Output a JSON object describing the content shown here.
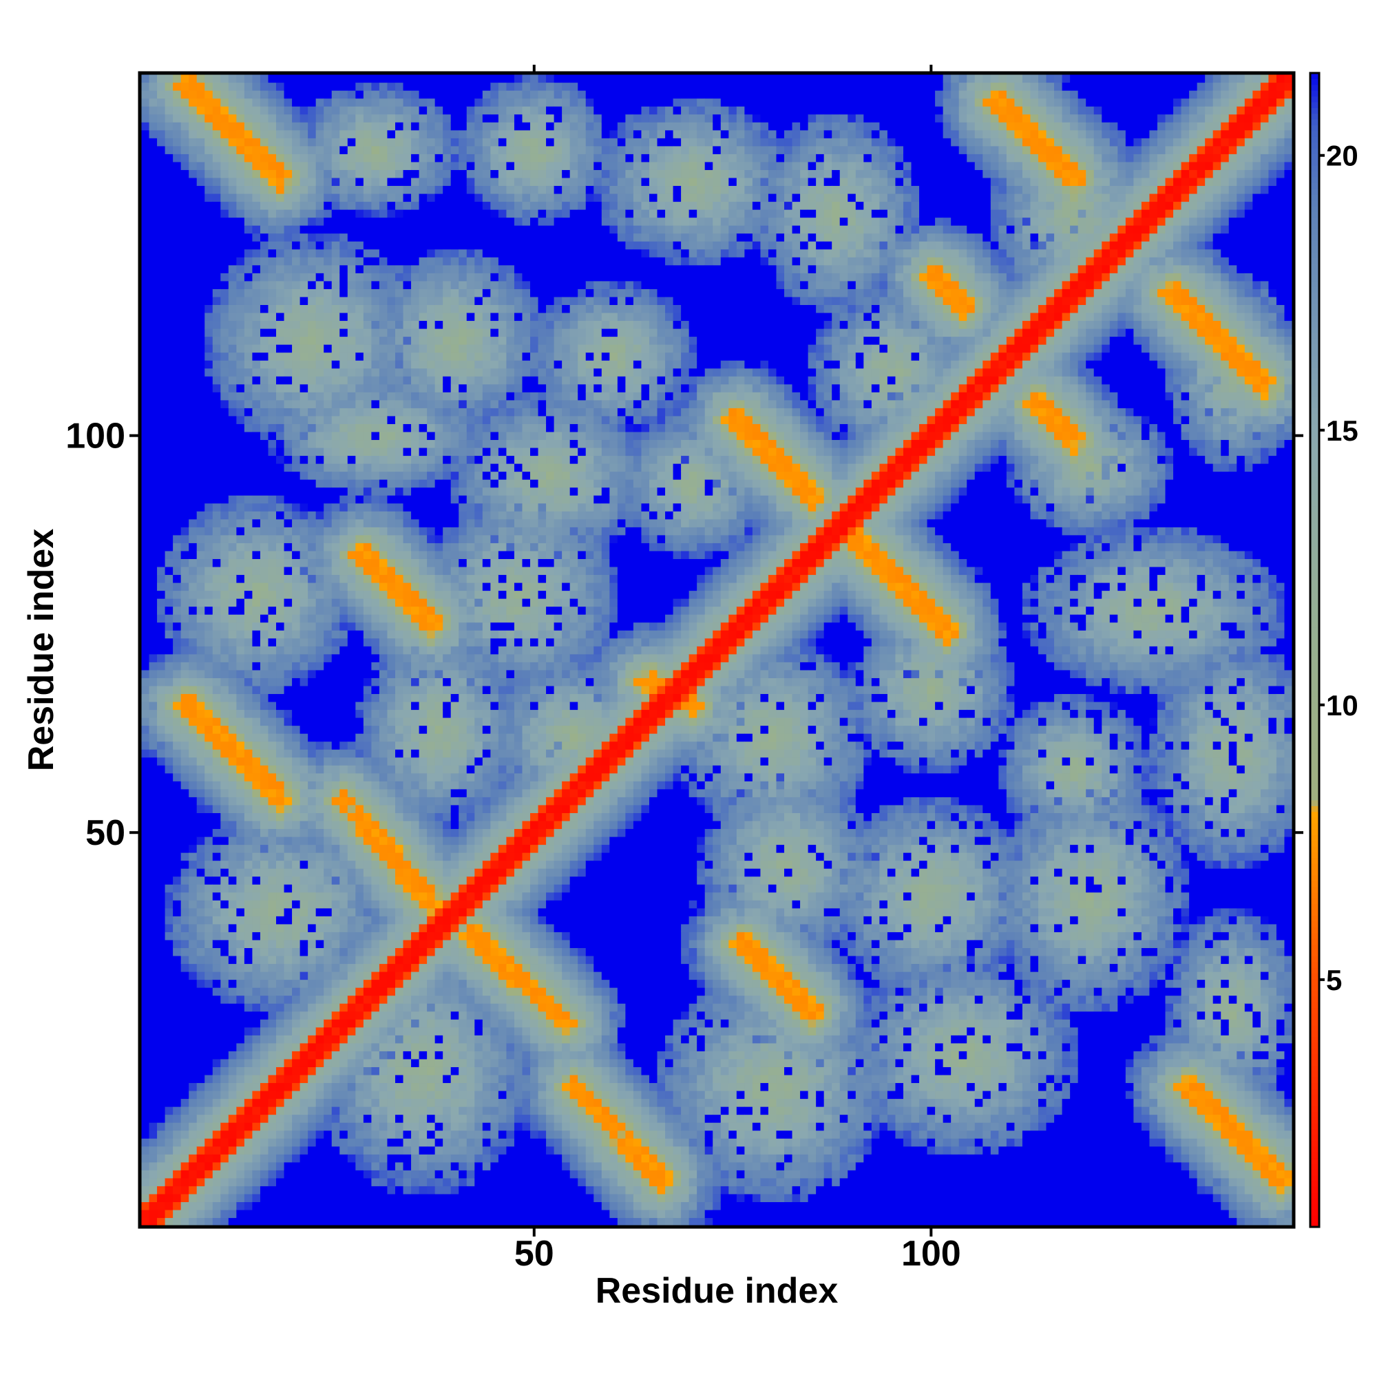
{
  "chart_data": {
    "type": "heatmap",
    "title": "",
    "xlabel": "Residue index",
    "ylabel": "Residue index",
    "xlim": [
      1,
      145
    ],
    "ylim": [
      1,
      145
    ],
    "x_ticks": [
      50,
      100
    ],
    "y_ticks": [
      50,
      100
    ],
    "colorbar": {
      "range": [
        0.5,
        21.5
      ],
      "ticks": [
        5,
        10,
        15,
        20
      ],
      "stops": [
        {
          "value": 0.5,
          "color": "#ff0000"
        },
        {
          "value": 5.0,
          "color": "#ff5000"
        },
        {
          "value": 8.0,
          "color": "#ffa500"
        },
        {
          "value": 8.2,
          "color": "#a0b080"
        },
        {
          "value": 11.0,
          "color": "#98b090"
        },
        {
          "value": 15.0,
          "color": "#8aa8b0"
        },
        {
          "value": 19.0,
          "color": "#5e82b8"
        },
        {
          "value": 20.5,
          "color": "#4060c8"
        },
        {
          "value": 21.5,
          "color": "#0000ee"
        }
      ]
    },
    "background_color": "#0000ee",
    "contact_segments": [
      {
        "i1": 1,
        "j1": 1,
        "i2": 145,
        "j2": 145,
        "value": 1.0
      },
      {
        "i1": 6,
        "j1": 144,
        "i2": 18,
        "j2": 132,
        "value": 7
      },
      {
        "i1": 108,
        "j1": 142,
        "i2": 118,
        "j2": 132,
        "value": 7
      },
      {
        "i1": 130,
        "j1": 118,
        "i2": 142,
        "j2": 106,
        "value": 7
      },
      {
        "i1": 75,
        "j1": 102,
        "i2": 85,
        "j2": 92,
        "value": 7
      },
      {
        "i1": 90,
        "j1": 87,
        "i2": 102,
        "j2": 75,
        "value": 7
      },
      {
        "i1": 28,
        "j1": 85,
        "i2": 37,
        "j2": 76,
        "value": 7
      },
      {
        "i1": 6,
        "j1": 66,
        "i2": 18,
        "j2": 54,
        "value": 7
      },
      {
        "i1": 26,
        "j1": 54,
        "i2": 37,
        "j2": 41,
        "value": 7
      },
      {
        "i1": 42,
        "j1": 37,
        "i2": 54,
        "j2": 26,
        "value": 7
      },
      {
        "i1": 76,
        "j1": 36,
        "i2": 85,
        "j2": 27,
        "value": 7
      },
      {
        "i1": 55,
        "j1": 18,
        "i2": 66,
        "j2": 6,
        "value": 7
      },
      {
        "i1": 132,
        "j1": 18,
        "i2": 144,
        "j2": 6,
        "value": 7
      },
      {
        "i1": 100,
        "j1": 120,
        "i2": 104,
        "j2": 116,
        "value": 7
      },
      {
        "i1": 113,
        "j1": 104,
        "i2": 118,
        "j2": 99,
        "value": 7
      },
      {
        "i1": 64,
        "j1": 69,
        "i2": 70,
        "j2": 66,
        "value": 7
      }
    ],
    "clusters": [
      {
        "x": 22,
        "y": 112,
        "rx": 13,
        "ry": 13
      },
      {
        "x": 40,
        "y": 112,
        "rx": 11,
        "ry": 11
      },
      {
        "x": 60,
        "y": 110,
        "rx": 10,
        "ry": 9
      },
      {
        "x": 70,
        "y": 132,
        "rx": 12,
        "ry": 10
      },
      {
        "x": 50,
        "y": 136,
        "rx": 9,
        "ry": 9
      },
      {
        "x": 30,
        "y": 136,
        "rx": 10,
        "ry": 8
      },
      {
        "x": 88,
        "y": 128,
        "rx": 10,
        "ry": 12
      },
      {
        "x": 95,
        "y": 108,
        "rx": 10,
        "ry": 10
      },
      {
        "x": 30,
        "y": 100,
        "rx": 13,
        "ry": 7
      },
      {
        "x": 52,
        "y": 95,
        "rx": 12,
        "ry": 10
      },
      {
        "x": 70,
        "y": 94,
        "rx": 9,
        "ry": 9
      },
      {
        "x": 15,
        "y": 80,
        "rx": 12,
        "ry": 12
      },
      {
        "x": 48,
        "y": 80,
        "rx": 12,
        "ry": 12
      },
      {
        "x": 38,
        "y": 63,
        "rx": 10,
        "ry": 12
      },
      {
        "x": 55,
        "y": 62,
        "rx": 10,
        "ry": 10
      },
      {
        "x": 80,
        "y": 62,
        "rx": 12,
        "ry": 12
      },
      {
        "x": 100,
        "y": 68,
        "rx": 10,
        "ry": 10
      },
      {
        "x": 128,
        "y": 78,
        "rx": 16,
        "ry": 10
      },
      {
        "x": 138,
        "y": 60,
        "rx": 10,
        "ry": 14
      },
      {
        "x": 118,
        "y": 58,
        "rx": 9,
        "ry": 9
      },
      {
        "x": 120,
        "y": 42,
        "rx": 12,
        "ry": 14
      },
      {
        "x": 100,
        "y": 42,
        "rx": 12,
        "ry": 12
      },
      {
        "x": 82,
        "y": 46,
        "rx": 11,
        "ry": 11
      },
      {
        "x": 18,
        "y": 40,
        "rx": 14,
        "ry": 12
      },
      {
        "x": 36,
        "y": 20,
        "rx": 13,
        "ry": 15
      },
      {
        "x": 80,
        "y": 18,
        "rx": 14,
        "ry": 14
      },
      {
        "x": 104,
        "y": 22,
        "rx": 14,
        "ry": 12
      },
      {
        "x": 138,
        "y": 28,
        "rx": 8,
        "ry": 12
      },
      {
        "x": 120,
        "y": 96,
        "rx": 10,
        "ry": 8
      },
      {
        "x": 118,
        "y": 128,
        "rx": 10,
        "ry": 12
      },
      {
        "x": 138,
        "y": 108,
        "rx": 8,
        "ry": 12
      }
    ]
  }
}
